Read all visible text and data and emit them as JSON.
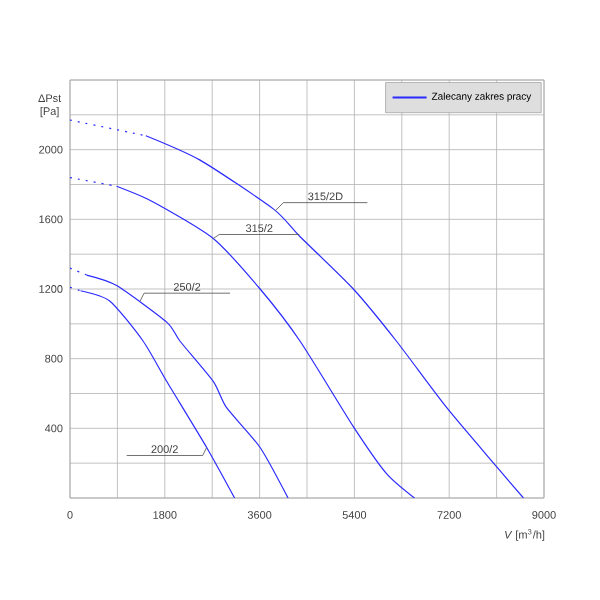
{
  "chart_data": {
    "type": "line",
    "xlabel": "*V* [m$^{3}$/h]",
    "ylabel": "ΔPst [Pa]",
    "xlim": [
      0,
      9000
    ],
    "ylim": [
      0,
      2400
    ],
    "xticks": [
      0,
      {
        "value": 900,
        "label": null
      },
      1800,
      {
        "value": 2700,
        "label": null
      },
      3600,
      {
        "value": 4500,
        "label": null
      },
      5400,
      {
        "value": 6300,
        "label": null
      },
      7200,
      {
        "value": 8100,
        "label": null
      },
      9000
    ],
    "yticks": [
      {
        "value": 0,
        "label": null
      },
      {
        "value": 200,
        "label": null
      },
      400,
      {
        "value": 600,
        "label": null
      },
      800,
      {
        "value": 1000,
        "label": null
      },
      1200,
      {
        "value": 1400,
        "label": null
      },
      1600,
      {
        "value": 1800,
        "label": null
      },
      2000,
      {
        "value": 2200,
        "label": null
      },
      {
        "value": 2400,
        "label": null
      }
    ],
    "grid": true,
    "legend": "top right",
    "series": [
      {
        "name": "Zalecany zakres pracy",
        "color": "#2b2bff",
        "x": [
          1440,
          2470,
          3860,
          4370,
          5380,
          6200,
          7150,
          8100,
          8610
        ],
        "values": [
          2080,
          1940,
          1660,
          1500,
          1200,
          900,
          520,
          180,
          0
        ]
      },
      {
        "color": "#2b2bff",
        "x": [
          885,
          1580,
          2720,
          3610,
          4370,
          5380,
          6010,
          6540
        ],
        "values": [
          1790,
          1700,
          1490,
          1200,
          900,
          410,
          140,
          0
        ]
      },
      {
        "color": "#2b2bff",
        "x": [
          316,
          885,
          1835,
          2090,
          2720,
          2970,
          3610,
          4140
        ],
        "values": [
          1280,
          1220,
          1010,
          900,
          670,
          520,
          290,
          0
        ]
      },
      {
        "color": "#2b2bff",
        "x": [
          200,
          760,
          1390,
          1835,
          2595,
          3125
        ],
        "values": [
          1190,
          1130,
          900,
          670,
          290,
          0
        ]
      },
      {
        "color": "#2b2bff",
        "line_style": "dotted",
        "x": [
          0,
          1440
        ],
        "values": [
          2170,
          2080
        ]
      },
      {
        "color": "#2b2bff",
        "line_style": "dotted",
        "x": [
          0,
          885
        ],
        "values": [
          1840,
          1790
        ]
      },
      {
        "color": "#2b2bff",
        "line_style": "dotted",
        "x": [
          0,
          316
        ],
        "values": [
          1320,
          1280
        ]
      },
      {
        "color": "#2b2bff",
        "line_style": "dotted",
        "x": [
          0,
          200
        ],
        "values": [
          1210,
          1190
        ]
      }
    ],
    "annotations": [
      {
        "text": "315/2D",
        "x": 3900,
        "y": 1650
      },
      {
        "text": "315/2",
        "x": 2720,
        "y": 1490
      },
      {
        "text": "250/2",
        "x": 1330,
        "y": 1130
      },
      {
        "text": "200/2",
        "x": 2595,
        "y": 290
      }
    ]
  }
}
